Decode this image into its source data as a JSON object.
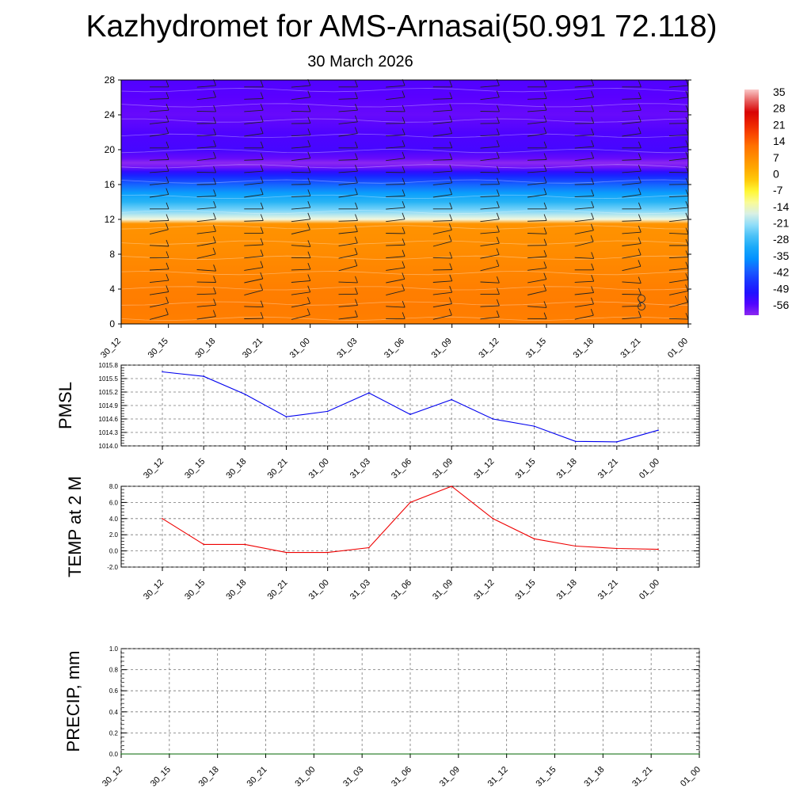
{
  "title": "Kazhydromet for AMS-Arnasai(50.991 72.118)",
  "subtitle": "30 March 2026",
  "time_labels": [
    "30_12",
    "30_15",
    "30_18",
    "30_21",
    "31_00",
    "31_03",
    "31_06",
    "31_09",
    "31_12",
    "31_15",
    "31_18",
    "31_21",
    "01_00"
  ],
  "chart_data": [
    {
      "type": "heatmap",
      "panel": "vertical-profile",
      "x": [
        "30_12",
        "30_15",
        "30_18",
        "30_21",
        "31_00",
        "31_03",
        "31_06",
        "31_09",
        "31_12",
        "31_15",
        "31_18",
        "31_21",
        "01_00"
      ],
      "y_ticks": [
        "0",
        "4",
        "8",
        "12",
        "16",
        "20",
        "24",
        "28"
      ],
      "ylim": [
        0,
        28
      ],
      "colorbar_labels": [
        "35",
        "28",
        "21",
        "14",
        "7",
        "0",
        "-7",
        "-14",
        "-21",
        "-28",
        "-35",
        "-42",
        "-49",
        "-56"
      ],
      "colorbar_range": [
        -60,
        38
      ],
      "profile_levels": [
        0,
        2,
        4,
        6,
        8,
        10,
        11.5,
        12,
        12.5,
        13,
        14,
        15,
        16,
        17,
        17.5,
        18,
        18.5,
        19,
        20,
        22,
        24,
        26,
        28
      ],
      "profile_values": [
        11,
        11.5,
        11,
        10,
        9,
        8,
        7.5,
        -14,
        -18,
        -22,
        -28,
        -33,
        -40,
        -47,
        -52,
        -58,
        -60,
        -57,
        -54,
        -55,
        -57,
        -56,
        -55
      ],
      "series": [],
      "grid": false
    },
    {
      "type": "line",
      "ylabel": "PMSL",
      "categories": [
        "30_12",
        "30_15",
        "30_18",
        "30_21",
        "31_00",
        "31_03",
        "31_06",
        "31_09",
        "31_12",
        "31_15",
        "31_18",
        "31_21",
        "01_00"
      ],
      "values": [
        1015.65,
        1015.55,
        1015.15,
        1014.65,
        1014.77,
        1015.18,
        1014.7,
        1015.03,
        1014.6,
        1014.44,
        1014.1,
        1014.09,
        1014.35
      ],
      "ylim": [
        1014.0,
        1015.8
      ],
      "y_ticks": [
        "1014.0",
        "1014.3",
        "1014.6",
        "1014.9",
        "1015.2",
        "1015.5",
        "1015.8"
      ],
      "color": "#0000ee",
      "grid": true
    },
    {
      "type": "line",
      "ylabel": "TEMP at 2 M",
      "categories": [
        "30_12",
        "30_15",
        "30_18",
        "30_21",
        "31_00",
        "31_03",
        "31_06",
        "31_09",
        "31_12",
        "31_15",
        "31_18",
        "31_21",
        "01_00"
      ],
      "values": [
        4.0,
        0.8,
        0.8,
        -0.2,
        -0.2,
        0.4,
        6.0,
        8.0,
        4.0,
        1.5,
        0.6,
        0.3,
        0.2
      ],
      "ylim": [
        -2.0,
        8.0
      ],
      "y_ticks": [
        "-2.0",
        "0.0",
        "2.0",
        "4.0",
        "6.0",
        "8.0"
      ],
      "color": "#ee0000",
      "grid": true
    },
    {
      "type": "line",
      "ylabel": "PRECIP, mm",
      "categories": [
        "30_12",
        "30_15",
        "30_18",
        "30_21",
        "31_00",
        "31_03",
        "31_06",
        "31_09",
        "31_12",
        "31_15",
        "31_18",
        "31_21",
        "01_00"
      ],
      "values": [
        0,
        0,
        0,
        0,
        0,
        0,
        0,
        0,
        0,
        0,
        0,
        0,
        0
      ],
      "ylim": [
        0.0,
        1.0
      ],
      "y_ticks": [
        "0.0",
        "0.2",
        "0.4",
        "0.6",
        "0.8",
        "1.0"
      ],
      "color": "#006400",
      "grid": true
    }
  ]
}
